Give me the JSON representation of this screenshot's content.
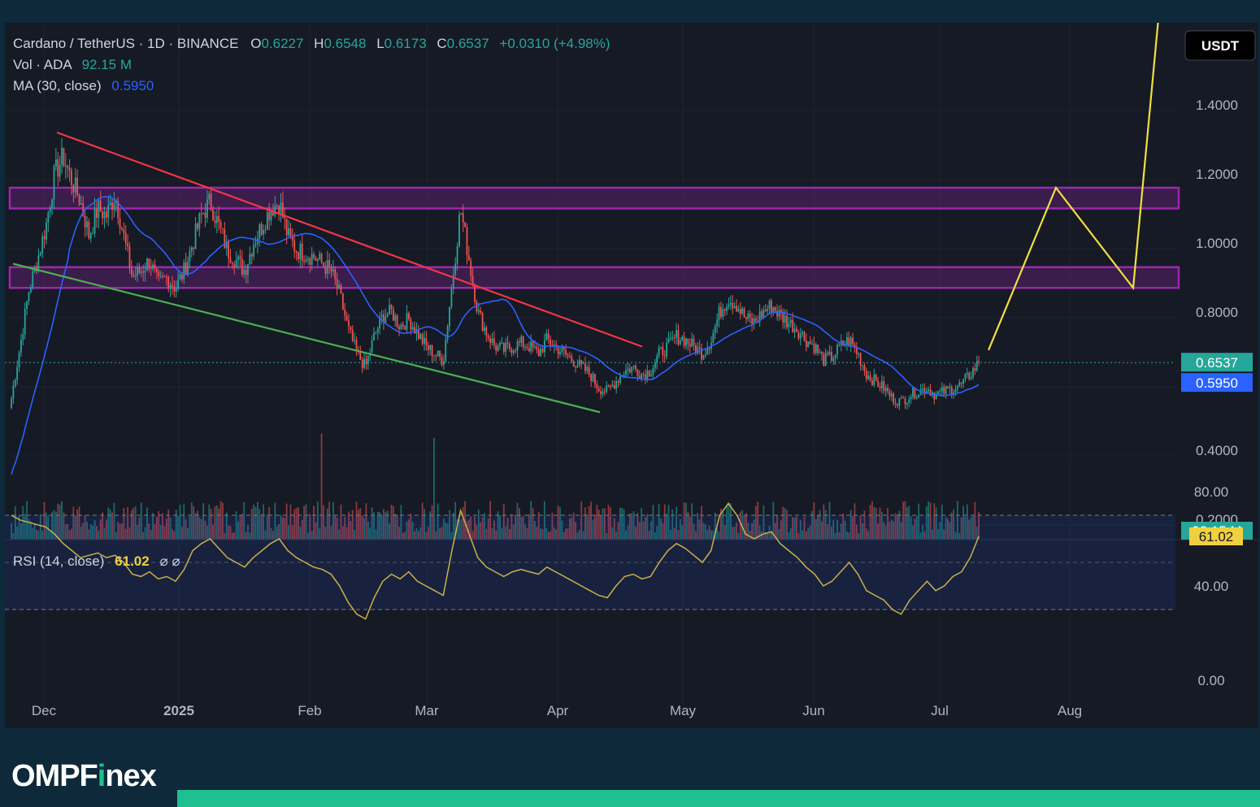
{
  "header": {
    "symbol": "Cardano / TetherUS · 1D · BINANCE",
    "o_label": "O",
    "o_value": "0.6227",
    "h_label": "H",
    "h_value": "0.6548",
    "l_label": "L",
    "l_value": "0.6173",
    "c_label": "C",
    "c_value": "0.6537",
    "change": "+0.0310 (+4.98%)",
    "vol_label": "Vol · ADA",
    "vol_value": "92.15 M",
    "ma_label": "MA (30, close)",
    "ma_value": "0.5950"
  },
  "currency_button": "USDT",
  "price_badges": {
    "last": "0.6537",
    "ma": "0.5950",
    "volume": "92.15 M"
  },
  "rsi": {
    "label": "RSI (14, close)",
    "value": "61.02",
    "icons": "⌀ ⌀",
    "badge": "61.02"
  },
  "brand": {
    "prefix": "OMPF",
    "i": "i",
    "suffix": "nex"
  },
  "colors": {
    "background": "#161a25",
    "up": "#26a69a",
    "down": "#ef5350",
    "ma": "#2962ff",
    "resistance_trend": "#f23645",
    "support_trend": "#4caf50",
    "zone": "#9c27b0",
    "projection": "#f0e040",
    "rsi": "#c9b14a",
    "brand_accent": "#1fbf8f"
  },
  "chart_data": {
    "type": "candlestick",
    "title": "Cardano / TetherUS · 1D · BINANCE",
    "x_ticks": [
      "Dec",
      "2025",
      "Feb",
      "Mar",
      "Apr",
      "May",
      "Jun",
      "Jul",
      "Aug"
    ],
    "y_ticks": [
      "1.4000",
      "1.2000",
      "1.0000",
      "0.8000",
      "0.4000",
      "0.2000"
    ],
    "rsi_ticks": [
      "80.00",
      "40.00",
      "0.00"
    ],
    "last_close": 0.6537,
    "ma30": 0.595,
    "zones": [
      {
        "name": "upper-resistance",
        "from": 1.1,
        "to": 1.16
      },
      {
        "name": "lower-resistance",
        "from": 0.87,
        "to": 0.93
      }
    ],
    "trendlines": [
      {
        "name": "descending-resistance",
        "from": [
          "Dec",
          1.32
        ],
        "to": [
          "Apr",
          0.7
        ]
      },
      {
        "name": "descending-support",
        "from": [
          "Nov",
          0.94
        ],
        "to": [
          "Apr",
          0.51
        ]
      }
    ],
    "projection_path": [
      0.69,
      1.16,
      0.87,
      1.7
    ],
    "close_series": [
      0.55,
      0.7,
      0.86,
      0.95,
      1.05,
      1.2,
      1.25,
      1.18,
      1.12,
      1.02,
      1.1,
      1.08,
      1.14,
      1.02,
      0.9,
      0.92,
      0.95,
      0.88,
      0.9,
      0.87,
      0.92,
      1.0,
      1.08,
      1.12,
      1.05,
      0.98,
      0.95,
      0.92,
      1.0,
      1.05,
      1.1,
      1.12,
      1.02,
      0.98,
      0.97,
      0.96,
      0.94,
      0.92,
      0.85,
      0.75,
      0.68,
      0.64,
      0.73,
      0.79,
      0.8,
      0.76,
      0.78,
      0.74,
      0.7,
      0.68,
      0.66,
      0.88,
      1.1,
      0.95,
      0.8,
      0.74,
      0.7,
      0.69,
      0.7,
      0.71,
      0.7,
      0.68,
      0.72,
      0.7,
      0.68,
      0.66,
      0.64,
      0.62,
      0.58,
      0.57,
      0.6,
      0.63,
      0.64,
      0.62,
      0.63,
      0.68,
      0.7,
      0.73,
      0.72,
      0.7,
      0.68,
      0.72,
      0.8,
      0.84,
      0.82,
      0.78,
      0.77,
      0.8,
      0.82,
      0.79,
      0.77,
      0.75,
      0.72,
      0.7,
      0.66,
      0.67,
      0.7,
      0.72,
      0.68,
      0.62,
      0.6,
      0.58,
      0.55,
      0.54,
      0.56,
      0.57,
      0.58,
      0.56,
      0.57,
      0.58,
      0.59,
      0.62,
      0.6537
    ],
    "rsi_series": [
      70,
      68,
      67,
      66,
      65,
      62,
      58,
      55,
      52,
      53,
      54,
      52,
      53,
      50,
      45,
      44,
      46,
      43,
      44,
      42,
      47,
      55,
      58,
      60,
      56,
      52,
      50,
      48,
      52,
      55,
      58,
      60,
      55,
      52,
      50,
      48,
      47,
      45,
      40,
      33,
      28,
      26,
      35,
      42,
      45,
      43,
      46,
      42,
      40,
      38,
      36,
      55,
      72,
      62,
      52,
      48,
      46,
      44,
      46,
      47,
      46,
      45,
      48,
      46,
      44,
      42,
      40,
      38,
      36,
      35,
      40,
      44,
      45,
      43,
      44,
      50,
      55,
      58,
      56,
      53,
      50,
      55,
      70,
      75,
      70,
      62,
      60,
      62,
      63,
      58,
      55,
      52,
      48,
      45,
      40,
      42,
      46,
      50,
      45,
      38,
      36,
      34,
      30,
      28,
      34,
      38,
      42,
      38,
      40,
      44,
      46,
      52,
      61.02
    ]
  }
}
